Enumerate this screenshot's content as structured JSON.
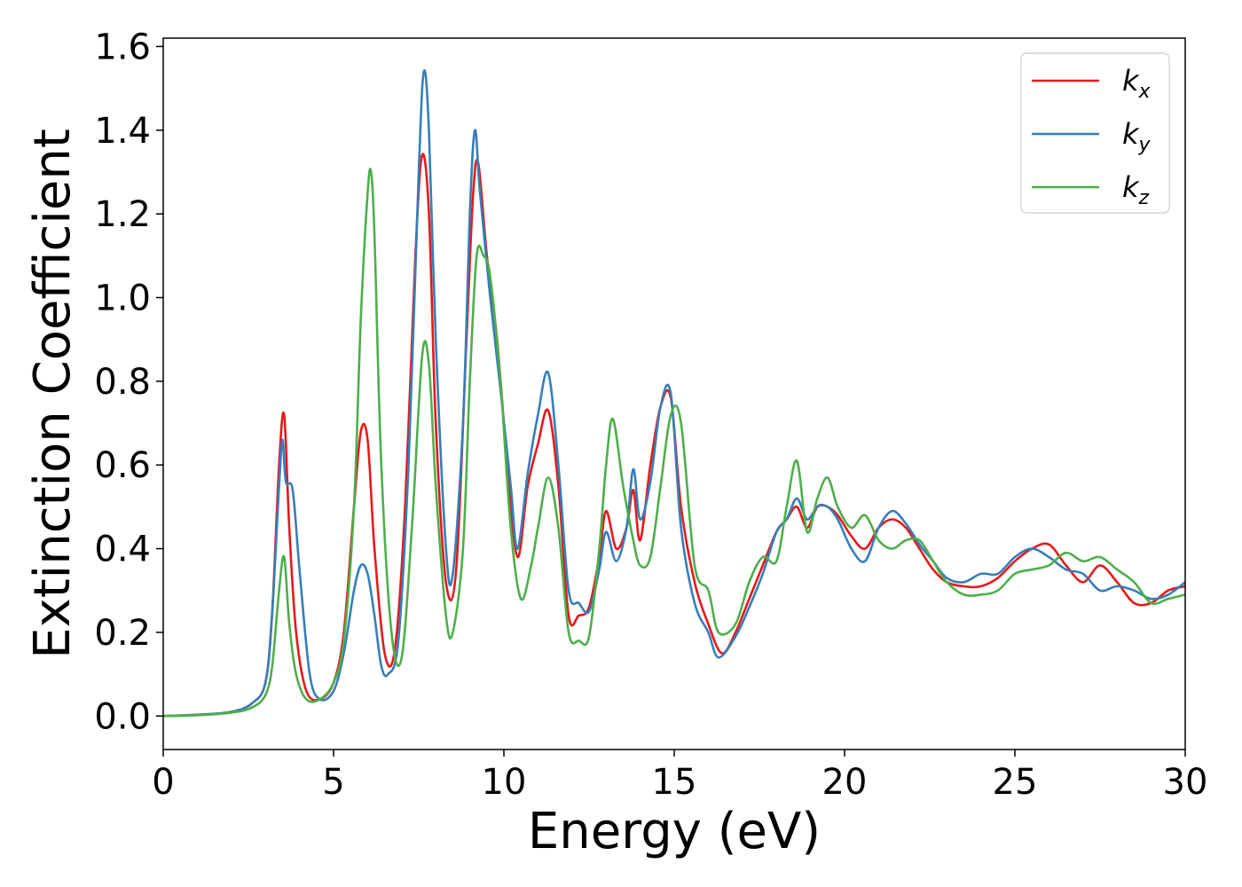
{
  "chart_data": {
    "type": "line",
    "xlabel": "Energy (eV)",
    "ylabel": "Extinction Coefficient",
    "xlim": [
      0,
      30
    ],
    "ylim": [
      -0.08,
      1.62
    ],
    "xticks": [
      "0",
      "5",
      "10",
      "15",
      "20",
      "25",
      "30"
    ],
    "yticks": [
      "0.0",
      "0.2",
      "0.4",
      "0.6",
      "0.8",
      "1.0",
      "1.2",
      "1.4",
      "1.6"
    ],
    "grid": false,
    "legend_position": "top-right",
    "series": [
      {
        "name": "kx",
        "label_main": "k",
        "label_sub": "x",
        "color": "#e41a1c",
        "x": [
          0,
          1,
          2,
          2.6,
          3,
          3.2,
          3.4,
          3.55,
          3.7,
          3.9,
          4.2,
          4.6,
          5,
          5.3,
          5.6,
          5.8,
          6.0,
          6.2,
          6.5,
          6.8,
          7.1,
          7.4,
          7.6,
          7.8,
          8.0,
          8.3,
          8.6,
          8.9,
          9.1,
          9.25,
          9.5,
          9.8,
          10.1,
          10.4,
          10.7,
          11.0,
          11.3,
          11.6,
          11.9,
          12.2,
          12.5,
          12.8,
          13.0,
          13.3,
          13.6,
          13.8,
          14.0,
          14.3,
          14.6,
          14.9,
          15.2,
          15.6,
          16.0,
          16.4,
          16.8,
          17.2,
          17.6,
          18.0,
          18.3,
          18.6,
          18.9,
          19.2,
          19.5,
          19.8,
          20.2,
          20.6,
          21.0,
          21.4,
          21.8,
          22.2,
          22.6,
          23.0,
          23.5,
          24.0,
          24.5,
          25.0,
          25.5,
          26.0,
          26.5,
          27.0,
          27.5,
          28.0,
          28.5,
          29.0,
          29.5,
          30.0
        ],
        "values": [
          0,
          0.003,
          0.01,
          0.03,
          0.08,
          0.25,
          0.6,
          0.72,
          0.45,
          0.2,
          0.06,
          0.04,
          0.08,
          0.2,
          0.5,
          0.68,
          0.66,
          0.4,
          0.15,
          0.16,
          0.5,
          1.1,
          1.34,
          1.2,
          0.7,
          0.32,
          0.35,
          0.9,
          1.25,
          1.32,
          1.1,
          0.9,
          0.6,
          0.38,
          0.55,
          0.65,
          0.73,
          0.55,
          0.24,
          0.24,
          0.26,
          0.38,
          0.49,
          0.4,
          0.45,
          0.54,
          0.42,
          0.6,
          0.74,
          0.76,
          0.5,
          0.32,
          0.22,
          0.15,
          0.2,
          0.28,
          0.36,
          0.44,
          0.47,
          0.5,
          0.45,
          0.5,
          0.5,
          0.48,
          0.43,
          0.4,
          0.45,
          0.47,
          0.45,
          0.4,
          0.35,
          0.32,
          0.31,
          0.31,
          0.33,
          0.37,
          0.4,
          0.41,
          0.36,
          0.32,
          0.36,
          0.32,
          0.27,
          0.27,
          0.3,
          0.31
        ]
      },
      {
        "name": "ky",
        "label_main": "k",
        "label_sub": "y",
        "color": "#377eb8",
        "x": [
          0,
          1,
          2,
          2.6,
          3,
          3.2,
          3.4,
          3.5,
          3.6,
          3.8,
          4.0,
          4.3,
          4.6,
          5,
          5.3,
          5.6,
          5.8,
          6.0,
          6.2,
          6.4,
          6.6,
          6.9,
          7.2,
          7.5,
          7.65,
          7.8,
          8.0,
          8.3,
          8.5,
          8.8,
          9.0,
          9.15,
          9.3,
          9.6,
          9.9,
          10.2,
          10.4,
          10.7,
          11.0,
          11.3,
          11.6,
          11.9,
          12.2,
          12.5,
          12.8,
          13.0,
          13.3,
          13.6,
          13.8,
          14.0,
          14.3,
          14.6,
          14.9,
          15.2,
          15.6,
          16.0,
          16.3,
          16.8,
          17.2,
          17.6,
          18.0,
          18.3,
          18.6,
          18.9,
          19.2,
          19.5,
          19.8,
          20.2,
          20.6,
          21.0,
          21.4,
          21.8,
          22.2,
          22.6,
          23.0,
          23.5,
          24.0,
          24.5,
          25.0,
          25.5,
          26.0,
          26.5,
          27.0,
          27.5,
          28.0,
          28.5,
          29.0,
          29.5,
          30.0
        ],
        "values": [
          0,
          0.003,
          0.01,
          0.03,
          0.08,
          0.25,
          0.55,
          0.66,
          0.56,
          0.54,
          0.35,
          0.1,
          0.04,
          0.06,
          0.15,
          0.3,
          0.36,
          0.34,
          0.24,
          0.12,
          0.1,
          0.18,
          0.6,
          1.3,
          1.54,
          1.4,
          0.9,
          0.4,
          0.34,
          0.7,
          1.2,
          1.4,
          1.25,
          1.0,
          0.78,
          0.55,
          0.4,
          0.58,
          0.72,
          0.82,
          0.6,
          0.3,
          0.27,
          0.25,
          0.35,
          0.44,
          0.37,
          0.45,
          0.59,
          0.47,
          0.56,
          0.74,
          0.77,
          0.45,
          0.27,
          0.2,
          0.14,
          0.19,
          0.26,
          0.34,
          0.44,
          0.47,
          0.52,
          0.47,
          0.5,
          0.5,
          0.47,
          0.4,
          0.37,
          0.45,
          0.49,
          0.46,
          0.41,
          0.37,
          0.33,
          0.32,
          0.34,
          0.34,
          0.38,
          0.4,
          0.38,
          0.35,
          0.34,
          0.3,
          0.31,
          0.3,
          0.28,
          0.29,
          0.32
        ]
      },
      {
        "name": "kz",
        "label_main": "k",
        "label_sub": "z",
        "color": "#4daf4a",
        "x": [
          0,
          1,
          2,
          2.6,
          3,
          3.2,
          3.4,
          3.55,
          3.7,
          3.9,
          4.2,
          4.6,
          5,
          5.3,
          5.6,
          5.8,
          6.0,
          6.1,
          6.2,
          6.4,
          6.7,
          7.0,
          7.3,
          7.6,
          7.8,
          8.0,
          8.3,
          8.5,
          8.8,
          9.0,
          9.2,
          9.4,
          9.6,
          9.9,
          10.2,
          10.5,
          10.8,
          11.0,
          11.3,
          11.6,
          11.9,
          12.2,
          12.5,
          12.8,
          13.0,
          13.2,
          13.5,
          13.8,
          14.0,
          14.3,
          14.6,
          14.9,
          15.2,
          15.6,
          16.0,
          16.3,
          16.8,
          17.2,
          17.6,
          18.0,
          18.3,
          18.6,
          18.9,
          19.2,
          19.5,
          19.8,
          20.2,
          20.6,
          21.0,
          21.4,
          21.8,
          22.2,
          22.6,
          23.0,
          23.5,
          24.0,
          24.5,
          25.0,
          25.5,
          26.0,
          26.5,
          27.0,
          27.5,
          28.0,
          28.5,
          29.0,
          29.5,
          30.0
        ],
        "values": [
          0,
          0.002,
          0.008,
          0.02,
          0.05,
          0.12,
          0.3,
          0.38,
          0.22,
          0.1,
          0.04,
          0.04,
          0.08,
          0.18,
          0.5,
          0.95,
          1.25,
          1.3,
          1.15,
          0.6,
          0.2,
          0.14,
          0.45,
          0.86,
          0.84,
          0.55,
          0.24,
          0.2,
          0.4,
          0.8,
          1.1,
          1.1,
          1.05,
          0.8,
          0.45,
          0.28,
          0.36,
          0.45,
          0.57,
          0.45,
          0.2,
          0.18,
          0.19,
          0.4,
          0.6,
          0.71,
          0.55,
          0.42,
          0.36,
          0.38,
          0.55,
          0.72,
          0.7,
          0.36,
          0.3,
          0.2,
          0.22,
          0.32,
          0.38,
          0.37,
          0.5,
          0.61,
          0.44,
          0.52,
          0.57,
          0.5,
          0.45,
          0.48,
          0.42,
          0.4,
          0.42,
          0.42,
          0.37,
          0.32,
          0.29,
          0.29,
          0.3,
          0.34,
          0.35,
          0.36,
          0.39,
          0.37,
          0.38,
          0.35,
          0.32,
          0.27,
          0.28,
          0.29
        ]
      }
    ]
  }
}
